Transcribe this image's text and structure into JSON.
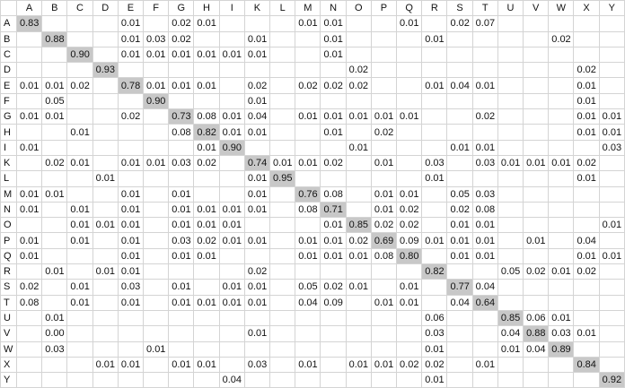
{
  "table": {
    "columns": [
      "A",
      "B",
      "C",
      "D",
      "E",
      "F",
      "G",
      "H",
      "I",
      "K",
      "L",
      "M",
      "N",
      "O",
      "P",
      "Q",
      "R",
      "S",
      "T",
      "U",
      "V",
      "W",
      "X",
      "Y"
    ],
    "rows": [
      {
        "label": "A",
        "cells": {
          "A": "0.83",
          "E": "0.01",
          "G": "0.02",
          "H": "0.01",
          "M": "0.01",
          "N": "0.01",
          "Q": "0.01",
          "S": "0.02",
          "T": "0.07"
        }
      },
      {
        "label": "B",
        "cells": {
          "B": "0.88",
          "E": "0.01",
          "F": "0.03",
          "G": "0.02",
          "K": "0.01",
          "N": "0.01",
          "R": "0.01",
          "W": "0.02"
        }
      },
      {
        "label": "C",
        "cells": {
          "C": "0.90",
          "E": "0.01",
          "F": "0.01",
          "G": "0.01",
          "H": "0.01",
          "I": "0.01",
          "K": "0.01",
          "N": "0.01"
        }
      },
      {
        "label": "D",
        "cells": {
          "D": "0.93",
          "O": "0.02",
          "X": "0.02"
        }
      },
      {
        "label": "E",
        "cells": {
          "A": "0.01",
          "B": "0.01",
          "C": "0.02",
          "E": "0.78",
          "F": "0.01",
          "G": "0.01",
          "H": "0.01",
          "K": "0.02",
          "M": "0.02",
          "N": "0.02",
          "O": "0.02",
          "R": "0.01",
          "S": "0.04",
          "T": "0.01",
          "X": "0.01"
        }
      },
      {
        "label": "F",
        "cells": {
          "B": "0.05",
          "F": "0.90",
          "K": "0.01",
          "X": "0.01"
        }
      },
      {
        "label": "G",
        "cells": {
          "A": "0.01",
          "B": "0.01",
          "E": "0.02",
          "G": "0.73",
          "H": "0.08",
          "I": "0.01",
          "K": "0.04",
          "M": "0.01",
          "N": "0.01",
          "O": "0.01",
          "P": "0.01",
          "Q": "0.01",
          "T": "0.02",
          "X": "0.01",
          "Y": "0.01"
        }
      },
      {
        "label": "H",
        "cells": {
          "C": "0.01",
          "G": "0.08",
          "H": "0.82",
          "I": "0.01",
          "K": "0.01",
          "N": "0.01",
          "P": "0.02",
          "X": "0.01",
          "Y": "0.01"
        }
      },
      {
        "label": "I",
        "cells": {
          "A": "0.01",
          "H": "0.01",
          "I": "0.90",
          "O": "0.01",
          "S": "0.01",
          "T": "0.01",
          "Y": "0.03"
        }
      },
      {
        "label": "K",
        "cells": {
          "B": "0.02",
          "C": "0.01",
          "E": "0.01",
          "F": "0.01",
          "G": "0.03",
          "H": "0.02",
          "K": "0.74",
          "L": "0.01",
          "M": "0.01",
          "N": "0.02",
          "P": "0.01",
          "R": "0.03",
          "T": "0.03",
          "U": "0.01",
          "V": "0.01",
          "W": "0.01",
          "X": "0.02"
        }
      },
      {
        "label": "L",
        "cells": {
          "D": "0.01",
          "K": "0.01",
          "L": "0.95",
          "R": "0.01",
          "X": "0.01"
        }
      },
      {
        "label": "M",
        "cells": {
          "A": "0.01",
          "B": "0.01",
          "E": "0.01",
          "G": "0.01",
          "K": "0.01",
          "M": "0.76",
          "N": "0.08",
          "P": "0.01",
          "Q": "0.01",
          "S": "0.05",
          "T": "0.03"
        }
      },
      {
        "label": "N",
        "cells": {
          "A": "0.01",
          "C": "0.01",
          "E": "0.01",
          "G": "0.01",
          "H": "0.01",
          "I": "0.01",
          "K": "0.01",
          "M": "0.08",
          "N": "0.71",
          "P": "0.01",
          "Q": "0.02",
          "S": "0.02",
          "T": "0.08"
        }
      },
      {
        "label": "O",
        "cells": {
          "C": "0.01",
          "D": "0.01",
          "E": "0.01",
          "G": "0.01",
          "H": "0.01",
          "I": "0.01",
          "N": "0.01",
          "O": "0.85",
          "P": "0.02",
          "Q": "0.02",
          "S": "0.01",
          "T": "0.01",
          "Y": "0.01"
        }
      },
      {
        "label": "P",
        "cells": {
          "A": "0.01",
          "C": "0.01",
          "E": "0.01",
          "G": "0.03",
          "H": "0.02",
          "I": "0.01",
          "K": "0.01",
          "M": "0.01",
          "N": "0.01",
          "O": "0.02",
          "P": "0.69",
          "Q": "0.09",
          "R": "0.01",
          "S": "0.01",
          "T": "0.01",
          "V": "0.01",
          "X": "0.04"
        }
      },
      {
        "label": "Q",
        "cells": {
          "A": "0.01",
          "E": "0.01",
          "G": "0.01",
          "H": "0.01",
          "M": "0.01",
          "N": "0.01",
          "O": "0.01",
          "P": "0.08",
          "Q": "0.80",
          "S": "0.01",
          "T": "0.01",
          "X": "0.01",
          "Y": "0.01"
        }
      },
      {
        "label": "R",
        "cells": {
          "B": "0.01",
          "D": "0.01",
          "E": "0.01",
          "K": "0.02",
          "R": "0.82",
          "U": "0.05",
          "V": "0.02",
          "W": "0.01",
          "X": "0.02"
        }
      },
      {
        "label": "S",
        "cells": {
          "A": "0.02",
          "C": "0.01",
          "E": "0.03",
          "G": "0.01",
          "I": "0.01",
          "K": "0.01",
          "M": "0.05",
          "N": "0.02",
          "O": "0.01",
          "Q": "0.01",
          "S": "0.77",
          "T": "0.04"
        }
      },
      {
        "label": "T",
        "cells": {
          "A": "0.08",
          "C": "0.01",
          "E": "0.01",
          "G": "0.01",
          "H": "0.01",
          "I": "0.01",
          "K": "0.01",
          "M": "0.04",
          "N": "0.09",
          "P": "0.01",
          "Q": "0.01",
          "S": "0.04",
          "T": "0.64"
        }
      },
      {
        "label": "U",
        "cells": {
          "B": "0.01",
          "R": "0.06",
          "U": "0.85",
          "V": "0.06",
          "W": "0.01"
        }
      },
      {
        "label": "V",
        "cells": {
          "B": "0.00",
          "K": "0.01",
          "R": "0.03",
          "U": "0.04",
          "V": "0.88",
          "W": "0.03",
          "X": "0.01"
        }
      },
      {
        "label": "W",
        "cells": {
          "B": "0.03",
          "F": "0.01",
          "R": "0.01",
          "U": "0.01",
          "V": "0.04",
          "W": "0.89"
        }
      },
      {
        "label": "X",
        "cells": {
          "D": "0.01",
          "E": "0.01",
          "G": "0.01",
          "H": "0.01",
          "K": "0.03",
          "M": "0.01",
          "O": "0.01",
          "P": "0.01",
          "Q": "0.02",
          "R": "0.02",
          "T": "0.01",
          "X": "0.84"
        }
      },
      {
        "label": "Y",
        "cells": {
          "I": "0.04",
          "R": "0.01",
          "Y": "0.92"
        }
      }
    ]
  }
}
